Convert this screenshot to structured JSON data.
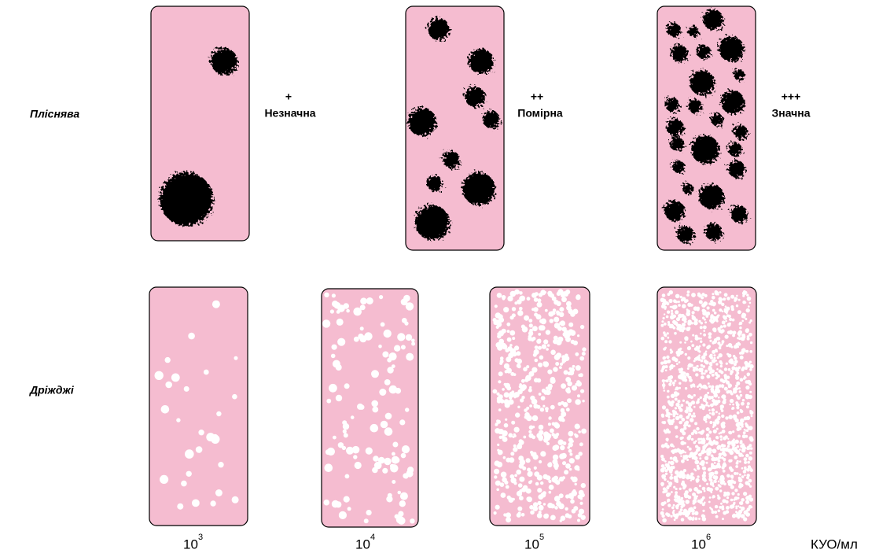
{
  "rows": {
    "mold": {
      "label": "Пліснява",
      "levels": [
        {
          "sign": "+",
          "text": "Незначна"
        },
        {
          "sign": "++",
          "text": "Помірна"
        },
        {
          "sign": "+++",
          "text": "Значна"
        }
      ]
    },
    "yeast": {
      "label": "Дріжджі"
    }
  },
  "columns": [
    {
      "base": "10",
      "exp": "3"
    },
    {
      "base": "10",
      "exp": "4"
    },
    {
      "base": "10",
      "exp": "5"
    },
    {
      "base": "10",
      "exp": "6"
    }
  ],
  "unit": "КУО/мл"
}
